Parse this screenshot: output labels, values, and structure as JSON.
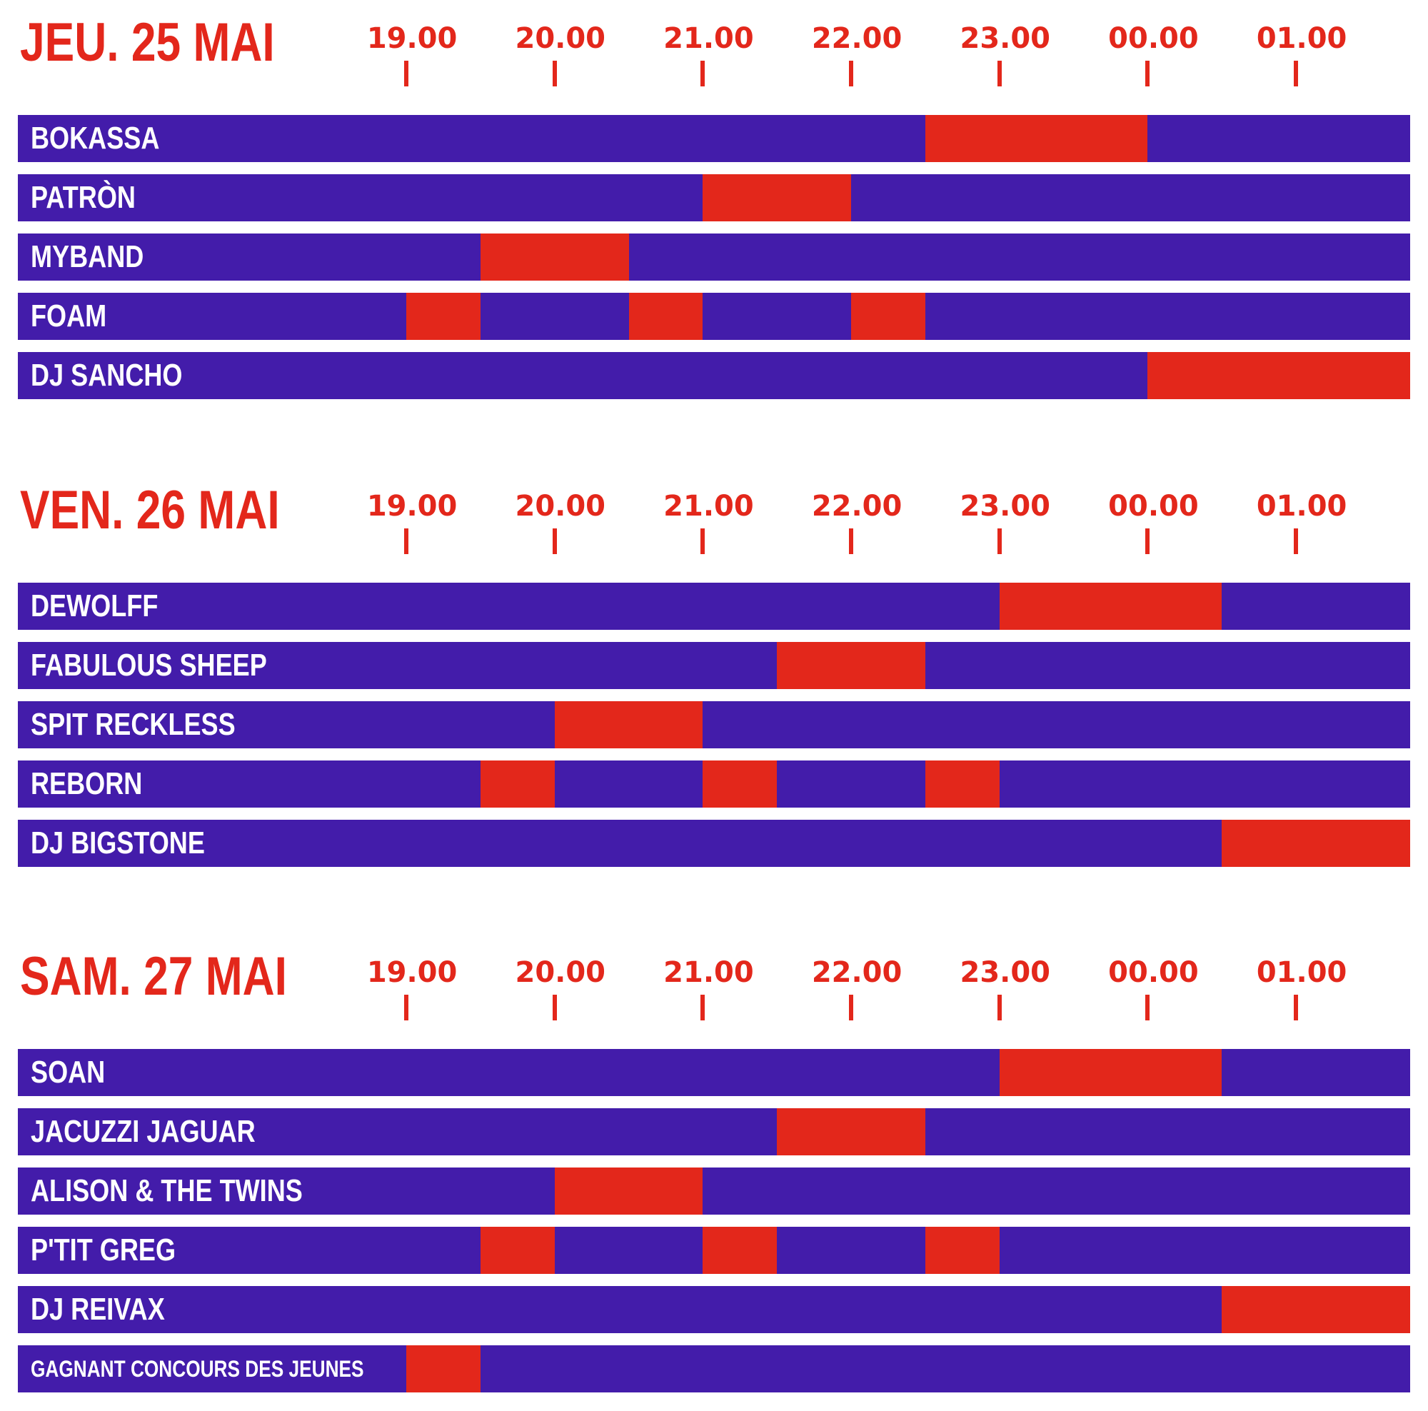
{
  "chart_data": {
    "type": "gantt",
    "colors": {
      "background_bar": "#431caa",
      "slot": "#e3271b",
      "accent": "#e3271b"
    },
    "time_ticks": [
      "19.00",
      "20.00",
      "21.00",
      "22.00",
      "23.00",
      "00.00",
      "01.00"
    ],
    "axis_hours": {
      "start": 19,
      "tick_step": 1,
      "range": [
        16.38,
        25.77
      ]
    },
    "days": [
      {
        "title": "JEU. 25 MAI",
        "rows": [
          {
            "name": "BOKASSA",
            "slots": [
              [
                22.5,
                24.0
              ]
            ]
          },
          {
            "name": "PATRÒN",
            "slots": [
              [
                21.0,
                22.0
              ]
            ]
          },
          {
            "name": "MYBAND",
            "slots": [
              [
                19.5,
                20.5
              ]
            ]
          },
          {
            "name": "FOAM",
            "slots": [
              [
                19.0,
                19.5
              ],
              [
                20.5,
                21.0
              ],
              [
                22.0,
                22.5
              ]
            ]
          },
          {
            "name": "DJ SANCHO",
            "slots": [
              [
                24.0,
                25.77
              ]
            ]
          }
        ]
      },
      {
        "title": "VEN. 26 MAI",
        "rows": [
          {
            "name": "DEWOLFF",
            "slots": [
              [
                23.0,
                24.5
              ]
            ]
          },
          {
            "name": "FABULOUS SHEEP",
            "slots": [
              [
                21.5,
                22.5
              ]
            ]
          },
          {
            "name": "SPIT RECKLESS",
            "slots": [
              [
                20.0,
                21.0
              ]
            ]
          },
          {
            "name": "REBORN",
            "slots": [
              [
                19.5,
                20.0
              ],
              [
                21.0,
                21.5
              ],
              [
                22.5,
                23.0
              ]
            ]
          },
          {
            "name": "DJ BIGSTONE",
            "slots": [
              [
                24.5,
                25.77
              ]
            ]
          }
        ]
      },
      {
        "title": "SAM. 27 MAI",
        "rows": [
          {
            "name": "SOAN",
            "slots": [
              [
                23.0,
                24.5
              ]
            ]
          },
          {
            "name": "JACUZZI JAGUAR",
            "slots": [
              [
                21.5,
                22.5
              ]
            ]
          },
          {
            "name": "ALISON & THE TWINS",
            "slots": [
              [
                20.0,
                21.0
              ]
            ]
          },
          {
            "name": "P'TIT GREG",
            "slots": [
              [
                19.5,
                20.0
              ],
              [
                21.0,
                21.5
              ],
              [
                22.5,
                23.0
              ]
            ]
          },
          {
            "name": "DJ REIVAX",
            "slots": [
              [
                24.5,
                25.77
              ]
            ]
          },
          {
            "name": "GAGNANT CONCOURS DES JEUNES",
            "slots": [
              [
                19.0,
                19.5
              ]
            ],
            "small_label": true
          }
        ]
      }
    ]
  }
}
